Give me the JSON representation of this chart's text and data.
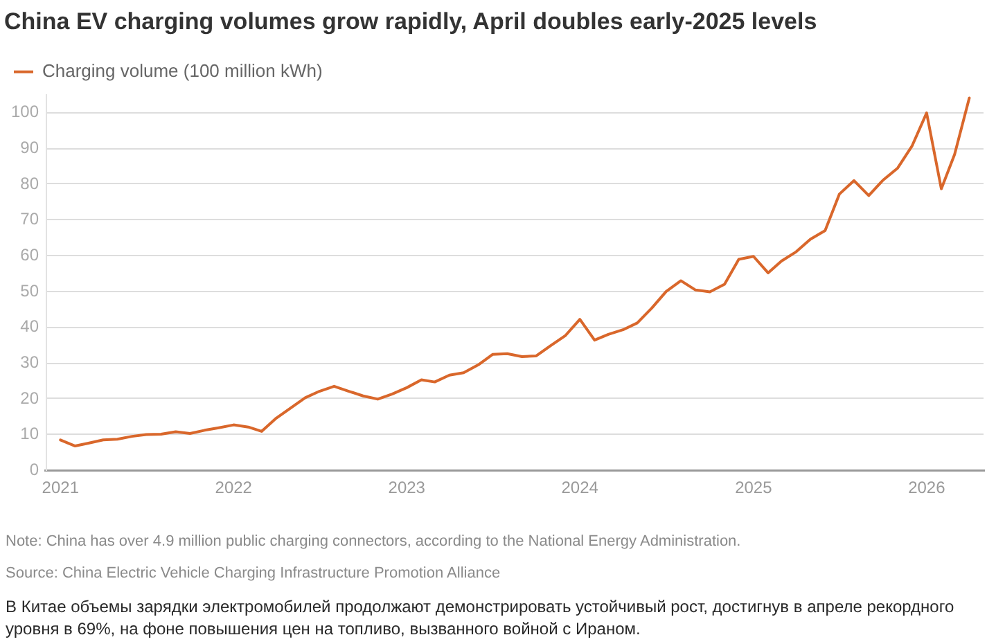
{
  "chart_data": {
    "type": "line",
    "title": "China EV charging volumes grow rapidly, April doubles early-2025 levels",
    "x": [
      "2021-01",
      "2021-02",
      "2021-03",
      "2021-04",
      "2021-05",
      "2021-06",
      "2021-07",
      "2021-08",
      "2021-09",
      "2021-10",
      "2021-11",
      "2021-12",
      "2022-01",
      "2022-02",
      "2022-03",
      "2022-04",
      "2022-05",
      "2022-06",
      "2022-07",
      "2022-08",
      "2022-09",
      "2022-10",
      "2022-11",
      "2022-12",
      "2023-01",
      "2023-02",
      "2023-03",
      "2023-04",
      "2023-05",
      "2023-06",
      "2023-07",
      "2023-08",
      "2023-09",
      "2023-10",
      "2023-11",
      "2023-12",
      "2024-01",
      "2024-02",
      "2024-03",
      "2024-04",
      "2024-05",
      "2024-06",
      "2024-07",
      "2024-08",
      "2024-09",
      "2024-10",
      "2024-11",
      "2024-12",
      "2025-01",
      "2025-02",
      "2025-03",
      "2025-04",
      "2025-05",
      "2025-06",
      "2025-07",
      "2025-08",
      "2025-09",
      "2025-10",
      "2025-11",
      "2025-12",
      "2026-01",
      "2026-02",
      "2026-03",
      "2026-04"
    ],
    "series": [
      {
        "name": "Charging volume (100 million kWh)",
        "color": "#d9672b",
        "values": [
          8.5,
          6.8,
          7.6,
          8.5,
          8.7,
          9.5,
          10.0,
          10.1,
          10.8,
          10.3,
          11.2,
          11.9,
          12.7,
          12.1,
          10.9,
          14.6,
          17.4,
          20.3,
          22.1,
          23.5,
          22.1,
          20.8,
          19.9,
          21.3,
          23.1,
          25.3,
          24.7,
          26.6,
          27.3,
          29.5,
          32.4,
          32.6,
          31.8,
          32.0,
          34.9,
          37.6,
          42.2,
          36.4,
          38.0,
          39.3,
          41.2,
          45.4,
          50.0,
          53.0,
          50.4,
          49.9,
          52.0,
          59.0,
          59.8,
          55.2,
          58.5,
          61.1,
          64.6,
          67.0,
          77.2,
          81.0,
          76.8,
          81.1,
          84.5,
          90.6,
          99.9,
          78.7,
          88.3,
          104.1
        ]
      }
    ],
    "xlim": [
      "2020-12",
      "2026-05"
    ],
    "xticks": [
      "2021",
      "2022",
      "2023",
      "2024",
      "2025",
      "2026"
    ],
    "ylim": [
      0,
      105
    ],
    "yticks": [
      0,
      10,
      20,
      30,
      40,
      50,
      60,
      70,
      80,
      90,
      100
    ],
    "grid": "y",
    "legend": "top left",
    "marker": "none",
    "line_style": "solid",
    "annotations": [
      "Note: China has over 4.9 million public charging connectors, according to the National Energy Administration.",
      "Source: China Electric Vehicle Charging Infrastructure Promotion Alliance",
      "В Китае объемы зарядки электромобилей продолжают демонстрировать устойчивый рост, достигнув в апреле рекордного уровня в 69%, на фоне повышения цен на топливо, вызванного войной с Ираном."
    ]
  }
}
